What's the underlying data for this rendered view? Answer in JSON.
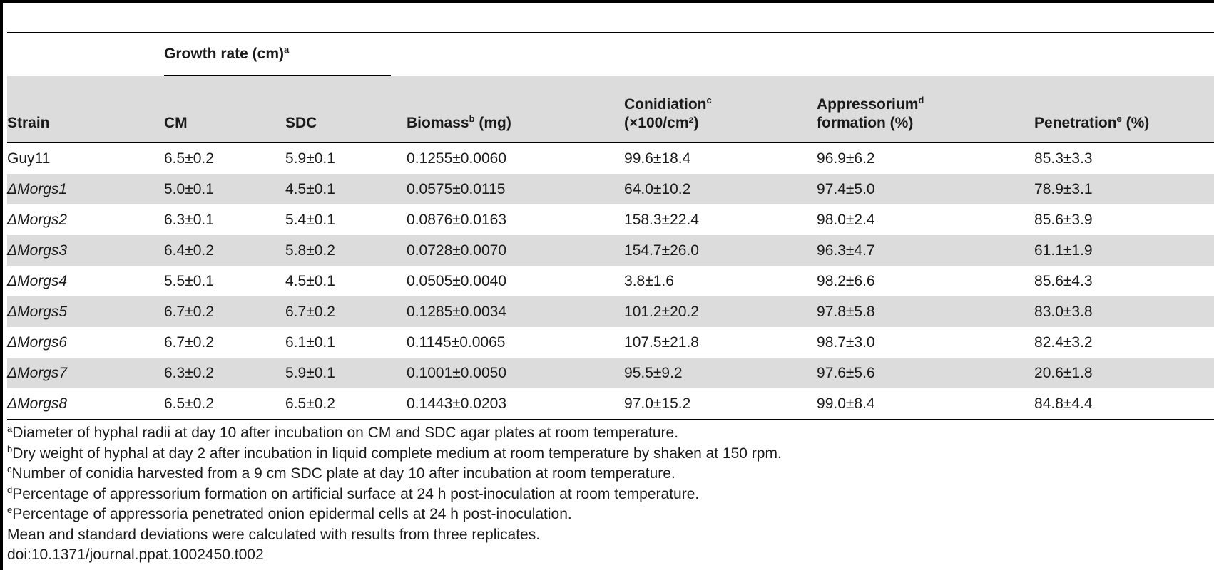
{
  "table": {
    "group_header": {
      "label": "Growth rate (cm)",
      "sup": "a"
    },
    "columns": [
      {
        "label": "Strain",
        "sup": "",
        "suffix": "",
        "line2": ""
      },
      {
        "label": "CM",
        "sup": "",
        "suffix": "",
        "line2": ""
      },
      {
        "label": "SDC",
        "sup": "",
        "suffix": "",
        "line2": ""
      },
      {
        "label": "Biomass",
        "sup": "b",
        "suffix": " (mg)",
        "line2": ""
      },
      {
        "label": "Conidiation",
        "sup": "c",
        "suffix": "",
        "line2": "(×100/cm²)"
      },
      {
        "label": "Appressorium",
        "sup": "d",
        "suffix": "",
        "line2": "formation (%)"
      },
      {
        "label": "Penetration",
        "sup": "e",
        "suffix": " (%)",
        "line2": ""
      }
    ],
    "rows": [
      {
        "strain": "Guy11",
        "cm": "6.5±0.2",
        "sdc": "5.9±0.1",
        "biomass": "0.1255±0.0060",
        "conidiation": "99.6±18.4",
        "appressorium": "96.9±6.2",
        "penetration": "85.3±3.3"
      },
      {
        "strain": "ΔMorgs1",
        "cm": "5.0±0.1",
        "sdc": "4.5±0.1",
        "biomass": "0.0575±0.0115",
        "conidiation": "64.0±10.2",
        "appressorium": "97.4±5.0",
        "penetration": "78.9±3.1"
      },
      {
        "strain": "ΔMorgs2",
        "cm": "6.3±0.1",
        "sdc": "5.4±0.1",
        "biomass": "0.0876±0.0163",
        "conidiation": "158.3±22.4",
        "appressorium": "98.0±2.4",
        "penetration": "85.6±3.9"
      },
      {
        "strain": "ΔMorgs3",
        "cm": "6.4±0.2",
        "sdc": "5.8±0.2",
        "biomass": "0.0728±0.0070",
        "conidiation": "154.7±26.0",
        "appressorium": "96.3±4.7",
        "penetration": "61.1±1.9"
      },
      {
        "strain": "ΔMorgs4",
        "cm": "5.5±0.1",
        "sdc": "4.5±0.1",
        "biomass": "0.0505±0.0040",
        "conidiation": "3.8±1.6",
        "appressorium": "98.2±6.6",
        "penetration": "85.6±4.3"
      },
      {
        "strain": "ΔMorgs5",
        "cm": "6.7±0.2",
        "sdc": "6.7±0.2",
        "biomass": "0.1285±0.0034",
        "conidiation": "101.2±20.2",
        "appressorium": "97.8±5.8",
        "penetration": "83.0±3.8"
      },
      {
        "strain": "ΔMorgs6",
        "cm": "6.7±0.2",
        "sdc": "6.1±0.1",
        "biomass": "0.1145±0.0065",
        "conidiation": "107.5±21.8",
        "appressorium": "98.7±3.0",
        "penetration": "82.4±3.2"
      },
      {
        "strain": "ΔMorgs7",
        "cm": "6.3±0.2",
        "sdc": "5.9±0.1",
        "biomass": "0.1001±0.0050",
        "conidiation": "95.5±9.2",
        "appressorium": "97.6±5.6",
        "penetration": "20.6±1.8"
      },
      {
        "strain": "ΔMorgs8",
        "cm": "6.5±0.2",
        "sdc": "6.5±0.2",
        "biomass": "0.1443±0.0203",
        "conidiation": "97.0±15.2",
        "appressorium": "99.0±8.4",
        "penetration": "84.8±4.4"
      }
    ]
  },
  "footnotes": [
    {
      "sup": "a",
      "text": "Diameter of hyphal radii at day 10 after incubation on CM and SDC agar plates at room temperature."
    },
    {
      "sup": "b",
      "text": "Dry weight of hyphal at day 2 after incubation in liquid complete medium at room temperature by shaken at 150 rpm."
    },
    {
      "sup": "c",
      "text": "Number of conidia harvested from a 9 cm SDC plate at day 10 after incubation at room temperature."
    },
    {
      "sup": "d",
      "text": "Percentage of appressorium formation on artificial surface at 24 h post-inoculation at room temperature."
    },
    {
      "sup": "e",
      "text": "Percentage of appressoria penetrated onion epidermal cells at 24 h post-inoculation."
    },
    {
      "sup": "",
      "text": "Mean and standard deviations were calculated with results from three replicates."
    },
    {
      "sup": "",
      "text": "doi:10.1371/journal.ppat.1002450.t002"
    }
  ]
}
